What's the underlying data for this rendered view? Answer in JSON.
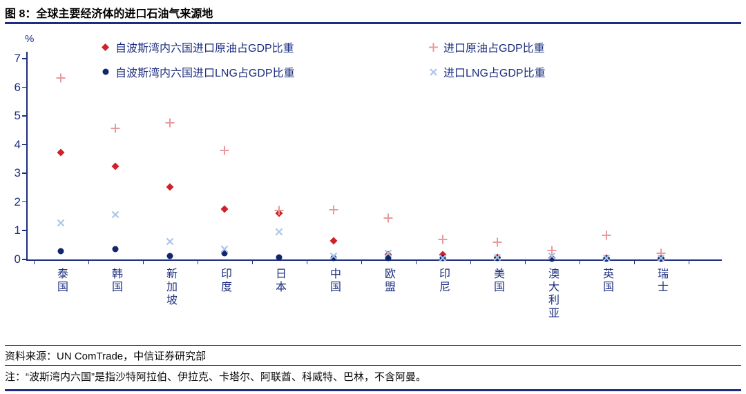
{
  "chart_data": {
    "type": "scatter",
    "title": "图 8：全球主要经济体的进口石油气来源地",
    "unit": "%",
    "ylim": [
      0,
      7
    ],
    "yticks": [
      0,
      1,
      2,
      3,
      4,
      5,
      6,
      7
    ],
    "grid": false,
    "legend_position": "top",
    "categories": [
      "泰国",
      "韩国",
      "新加坡",
      "印度",
      "日本",
      "中国",
      "欧盟",
      "印尼",
      "美国",
      "澳大利亚",
      "英国",
      "瑞士"
    ],
    "series": [
      {
        "name": "自波斯湾内六国进口原油占GDP比重",
        "marker": "diamond",
        "color": "#d0202a",
        "values": [
          3.72,
          3.25,
          2.52,
          1.76,
          1.61,
          0.65,
          0.18,
          0.17,
          0.08,
          0.05,
          0.06,
          0.04
        ]
      },
      {
        "name": "进口原油占GDP比重",
        "marker": "plus",
        "color": "#e8999b",
        "values": [
          6.32,
          4.57,
          4.76,
          3.8,
          1.71,
          1.73,
          1.45,
          0.7,
          0.6,
          0.31,
          0.84,
          0.22
        ]
      },
      {
        "name": "自波斯湾内六国进口LNG占GDP比重",
        "marker": "circle",
        "color": "#12266b",
        "values": [
          0.3,
          0.36,
          0.12,
          0.22,
          0.07,
          0.05,
          0.06,
          0.04,
          0.04,
          0.03,
          0.03,
          0.02
        ]
      },
      {
        "name": "进口LNG占GDP比重",
        "marker": "x",
        "color": "#a9c7e8",
        "values": [
          1.27,
          1.56,
          0.63,
          0.36,
          0.96,
          0.12,
          0.21,
          0.06,
          0.07,
          0.12,
          0.06,
          0.04
        ]
      }
    ]
  },
  "footer": {
    "source": "资料来源：UN ComTrade，中信证券研究部",
    "note": "注：“波斯湾内六国”是指沙特阿拉伯、伊拉克、卡塔尔、阿联酋、科威特、巴林，不含阿曼。"
  },
  "colors": {
    "navy": "#1b2d7f",
    "title_text": "#000000"
  }
}
